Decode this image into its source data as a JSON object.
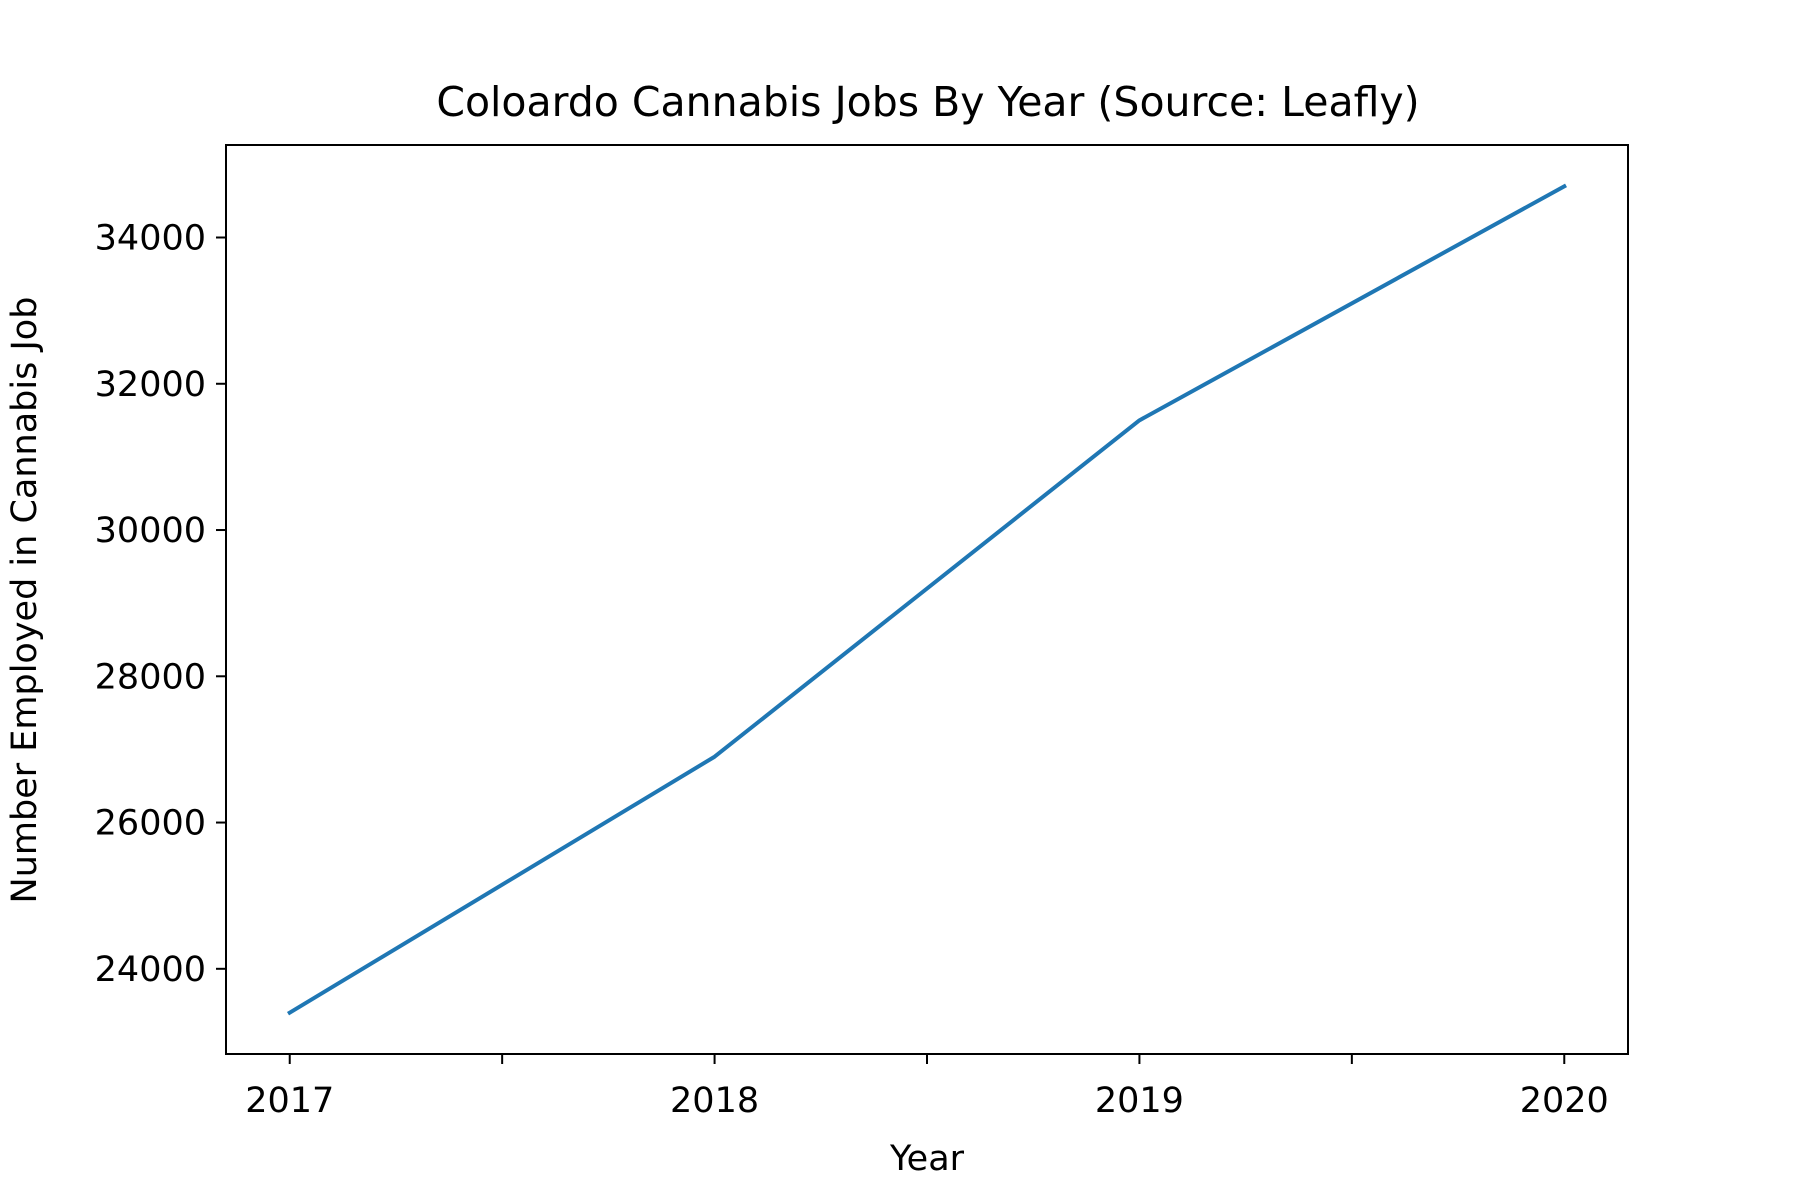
{
  "chart_data": {
    "type": "line",
    "title": "Coloardo Cannabis Jobs By Year  (Source: Leafly)",
    "xlabel": "Year",
    "ylabel": "Number Employed in Cannabis Job",
    "x": [
      2017,
      2018,
      2019,
      2020
    ],
    "series": [
      {
        "values": [
          23400,
          26900,
          31500,
          34700
        ]
      }
    ],
    "x_ticks": [
      2017,
      2018,
      2019,
      2020
    ],
    "x_tick_labels": [
      "2017",
      "2018",
      "2019",
      "2020"
    ],
    "y_ticks": [
      24000,
      26000,
      28000,
      30000,
      32000,
      34000
    ],
    "y_tick_labels": [
      "24000",
      "26000",
      "28000",
      "30000",
      "32000",
      "34000"
    ],
    "xlim": [
      2016.85,
      2020.15
    ],
    "ylim": [
      22835,
      35265
    ],
    "grid": false,
    "line_color": "#1f77b4"
  }
}
